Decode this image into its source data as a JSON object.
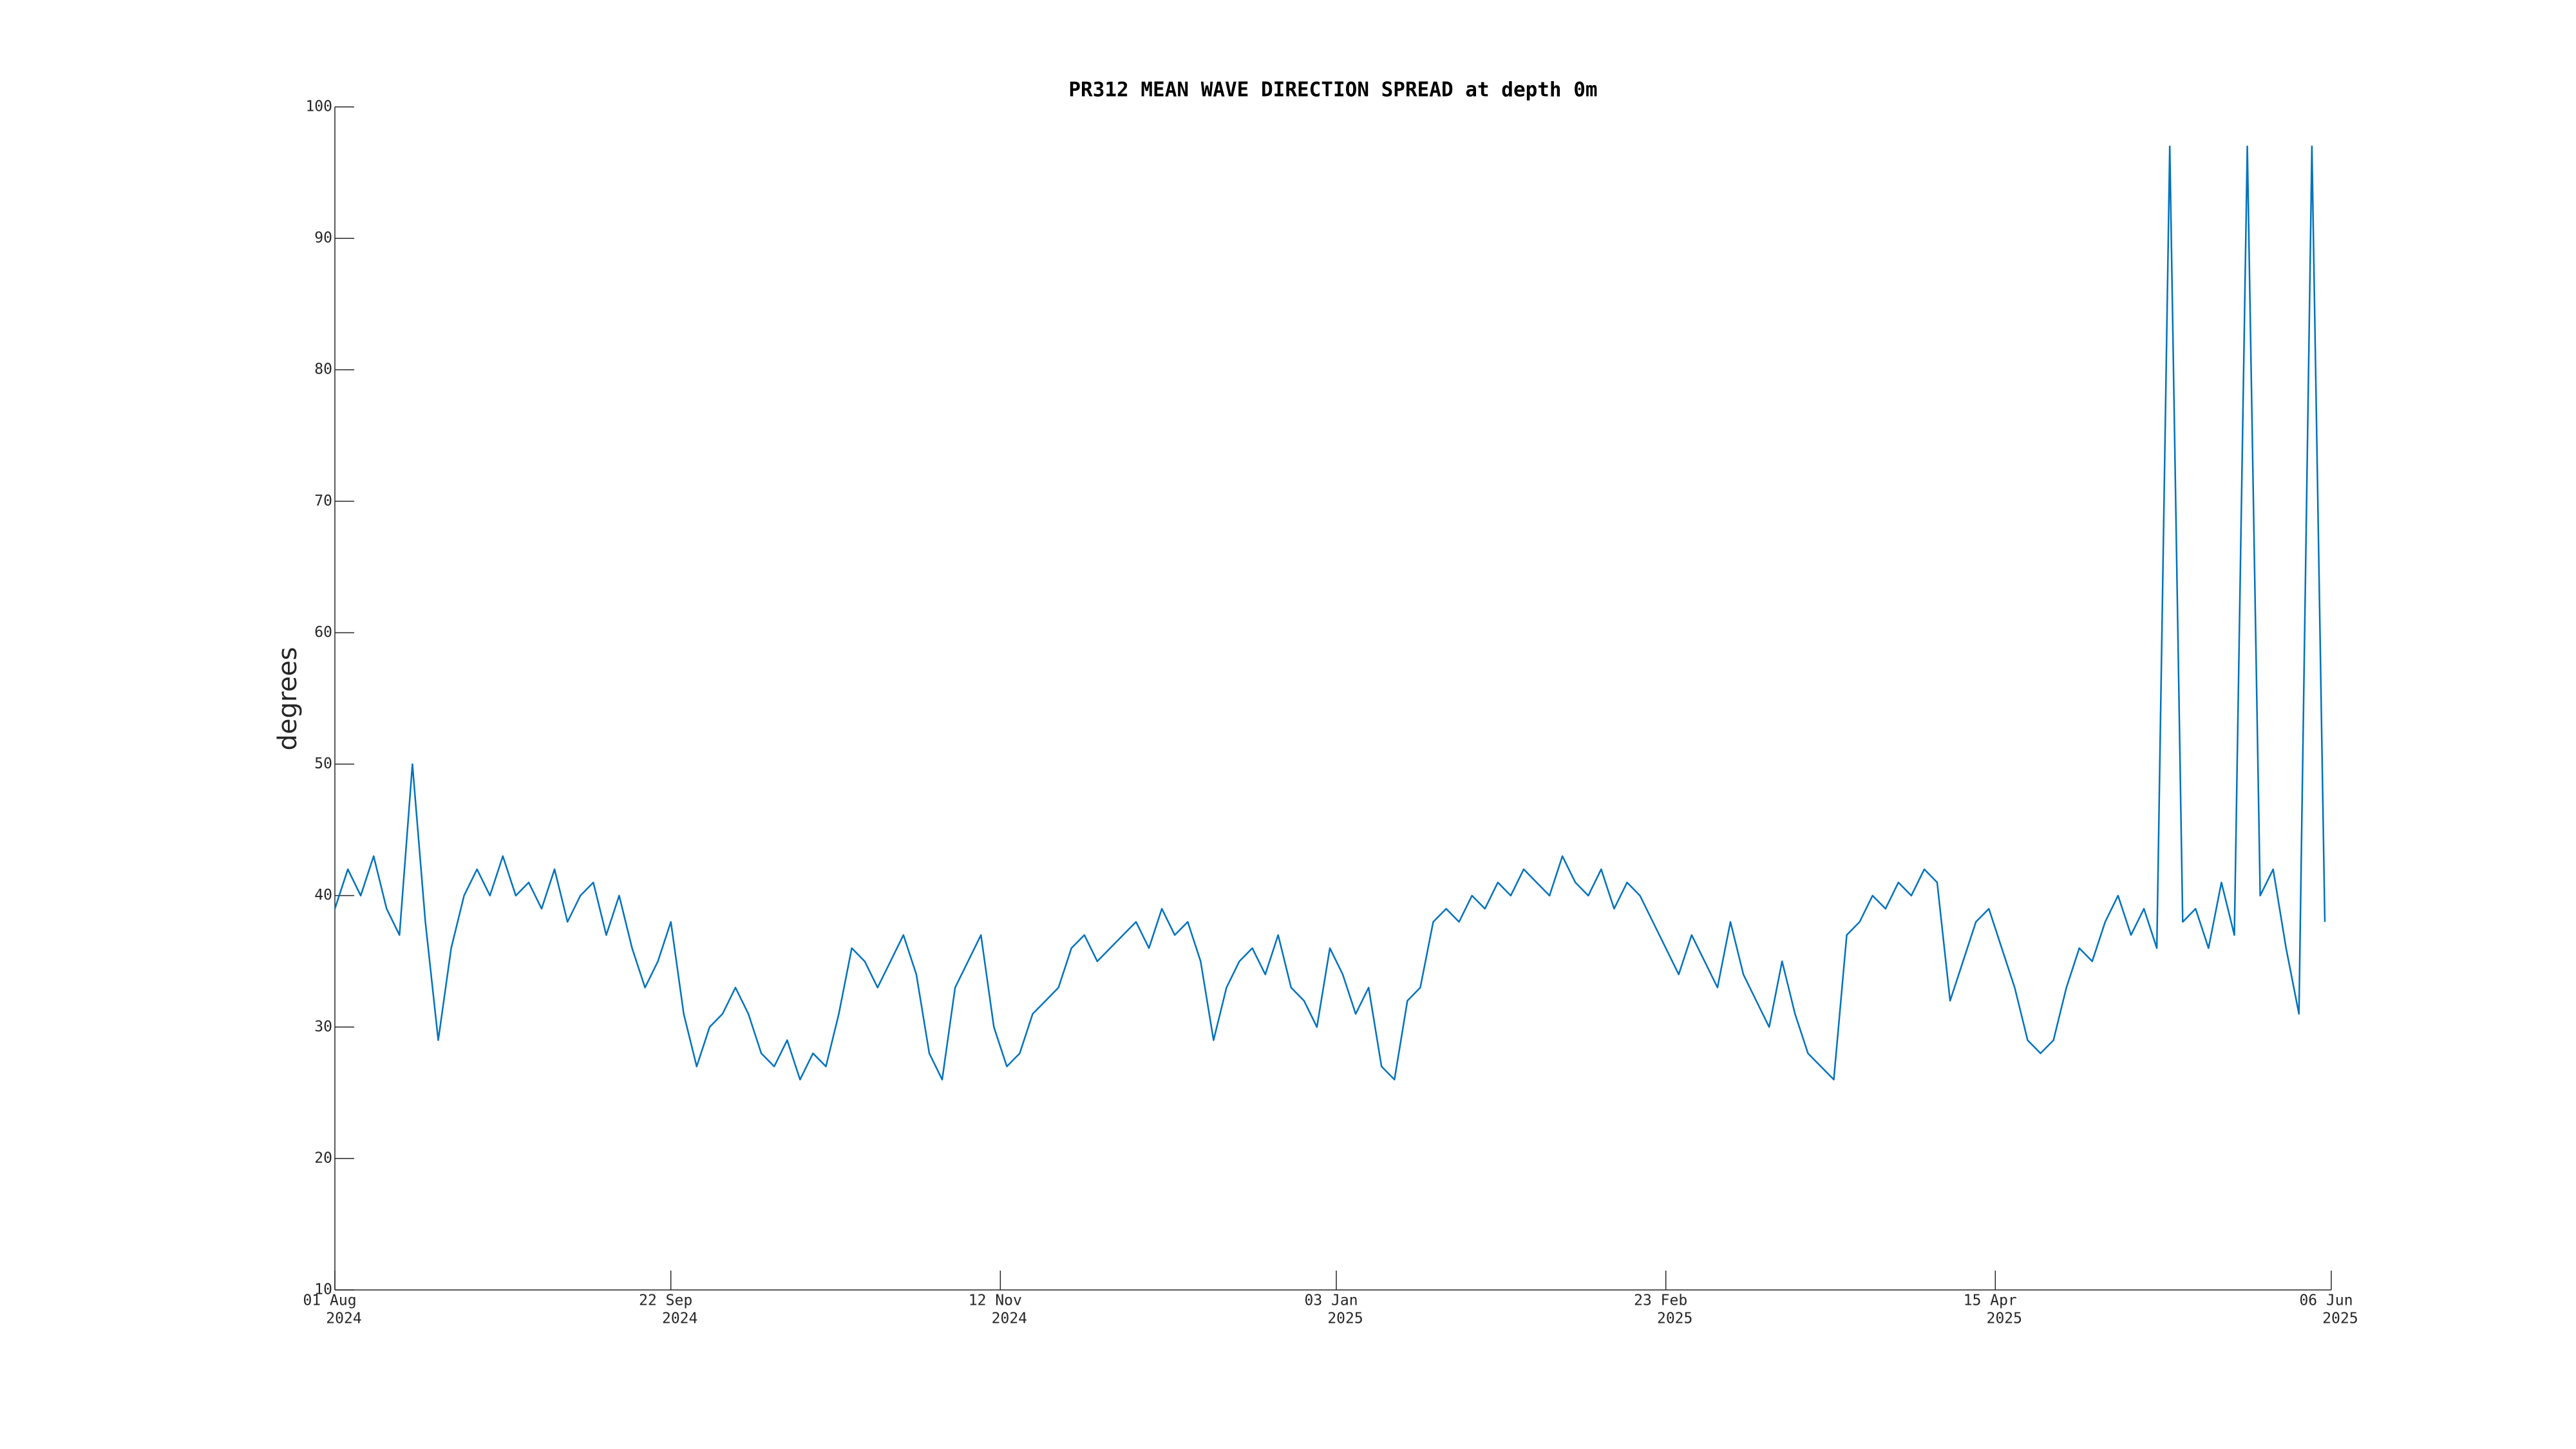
{
  "chart_data": {
    "type": "line",
    "title": "PR312 MEAN WAVE DIRECTION SPREAD at depth 0m",
    "y_label": "degrees",
    "color": "#0072BD",
    "x": [
      "2024-08-01",
      "2024-08-03",
      "2024-08-05",
      "2024-08-07",
      "2024-08-09",
      "2024-08-11",
      "2024-08-13",
      "2024-08-15",
      "2024-08-17",
      "2024-08-19",
      "2024-08-21",
      "2024-08-23",
      "2024-08-25",
      "2024-08-27",
      "2024-08-29",
      "2024-08-31",
      "2024-09-02",
      "2024-09-04",
      "2024-09-06",
      "2024-09-08",
      "2024-09-10",
      "2024-09-12",
      "2024-09-14",
      "2024-09-16",
      "2024-09-18",
      "2024-09-20",
      "2024-09-22",
      "2024-09-24",
      "2024-09-26",
      "2024-09-28",
      "2024-09-30",
      "2024-10-02",
      "2024-10-04",
      "2024-10-06",
      "2024-10-08",
      "2024-10-10",
      "2024-10-12",
      "2024-10-14",
      "2024-10-16",
      "2024-10-18",
      "2024-10-20",
      "2024-10-22",
      "2024-10-24",
      "2024-10-26",
      "2024-10-28",
      "2024-10-30",
      "2024-11-01",
      "2024-11-03",
      "2024-11-05",
      "2024-11-07",
      "2024-11-09",
      "2024-11-11",
      "2024-11-13",
      "2024-11-15",
      "2024-11-17",
      "2024-11-19",
      "2024-11-21",
      "2024-11-23",
      "2024-11-25",
      "2024-11-27",
      "2024-11-29",
      "2024-12-01",
      "2024-12-03",
      "2024-12-05",
      "2024-12-07",
      "2024-12-09",
      "2024-12-11",
      "2024-12-13",
      "2024-12-15",
      "2024-12-17",
      "2024-12-19",
      "2024-12-21",
      "2024-12-23",
      "2024-12-25",
      "2024-12-27",
      "2024-12-29",
      "2024-12-31",
      "2025-01-02",
      "2025-01-04",
      "2025-01-06",
      "2025-01-08",
      "2025-01-10",
      "2025-01-12",
      "2025-01-14",
      "2025-01-16",
      "2025-01-18",
      "2025-01-20",
      "2025-01-22",
      "2025-01-24",
      "2025-01-26",
      "2025-01-28",
      "2025-01-30",
      "2025-02-01",
      "2025-02-03",
      "2025-02-05",
      "2025-02-07",
      "2025-02-09",
      "2025-02-11",
      "2025-02-13",
      "2025-02-15",
      "2025-02-17",
      "2025-02-19",
      "2025-02-21",
      "2025-02-23",
      "2025-02-25",
      "2025-02-27",
      "2025-03-01",
      "2025-03-03",
      "2025-03-05",
      "2025-03-07",
      "2025-03-09",
      "2025-03-11",
      "2025-03-13",
      "2025-03-15",
      "2025-03-17",
      "2025-03-19",
      "2025-03-21",
      "2025-03-23",
      "2025-03-25",
      "2025-03-27",
      "2025-03-29",
      "2025-03-31",
      "2025-04-02",
      "2025-04-04",
      "2025-04-06",
      "2025-04-08",
      "2025-04-10",
      "2025-04-12",
      "2025-04-14",
      "2025-04-16",
      "2025-04-18",
      "2025-04-20",
      "2025-04-22",
      "2025-04-24",
      "2025-04-26",
      "2025-04-28",
      "2025-04-30",
      "2025-05-02",
      "2025-05-04",
      "2025-05-06",
      "2025-05-08",
      "2025-05-10",
      "2025-05-12",
      "2025-05-14",
      "2025-05-16",
      "2025-05-18",
      "2025-05-20",
      "2025-05-22",
      "2025-05-24",
      "2025-05-26",
      "2025-05-28",
      "2025-05-30",
      "2025-06-01",
      "2025-06-03",
      "2025-06-05"
    ],
    "values": [
      39,
      42,
      40,
      43,
      39,
      37,
      50,
      38,
      29,
      36,
      40,
      42,
      40,
      43,
      40,
      41,
      39,
      42,
      38,
      40,
      41,
      37,
      40,
      36,
      33,
      35,
      38,
      31,
      27,
      30,
      31,
      33,
      31,
      28,
      27,
      29,
      26,
      28,
      27,
      31,
      36,
      35,
      33,
      35,
      37,
      34,
      28,
      26,
      33,
      35,
      37,
      30,
      27,
      28,
      31,
      32,
      33,
      36,
      37,
      35,
      36,
      37,
      38,
      36,
      39,
      37,
      38,
      35,
      29,
      33,
      35,
      36,
      34,
      37,
      33,
      32,
      30,
      36,
      34,
      31,
      33,
      27,
      26,
      32,
      33,
      38,
      39,
      38,
      40,
      39,
      41,
      40,
      42,
      41,
      40,
      43,
      41,
      40,
      42,
      39,
      41,
      40,
      38,
      36,
      34,
      37,
      35,
      33,
      38,
      34,
      32,
      30,
      35,
      31,
      28,
      27,
      26,
      37,
      38,
      40,
      39,
      41,
      40,
      42,
      41,
      32,
      35,
      38,
      39,
      36,
      33,
      29,
      28,
      29,
      33,
      36,
      35,
      38,
      40,
      37,
      39,
      36,
      97,
      38,
      39,
      36,
      41,
      37,
      97,
      40,
      42,
      36,
      31,
      97,
      38
    ],
    "xlim": [
      "2024-08-01",
      "2025-06-06"
    ],
    "xticks": [
      {
        "value": "2024-08-01",
        "label": [
          "01 Aug",
          "2024"
        ]
      },
      {
        "value": "2024-09-22",
        "label": [
          "22 Sep",
          "2024"
        ]
      },
      {
        "value": "2024-11-12",
        "label": [
          "12 Nov",
          "2024"
        ]
      },
      {
        "value": "2025-01-03",
        "label": [
          "03 Jan",
          "2025"
        ]
      },
      {
        "value": "2025-02-23",
        "label": [
          "23 Feb",
          "2025"
        ]
      },
      {
        "value": "2025-04-15",
        "label": [
          "15 Apr",
          "2025"
        ]
      },
      {
        "value": "2025-06-06",
        "label": [
          "06 Jun",
          "2025"
        ]
      }
    ],
    "ylim": [
      10,
      100
    ],
    "yticks": [
      10,
      20,
      30,
      40,
      50,
      60,
      70,
      80,
      90,
      100
    ]
  }
}
